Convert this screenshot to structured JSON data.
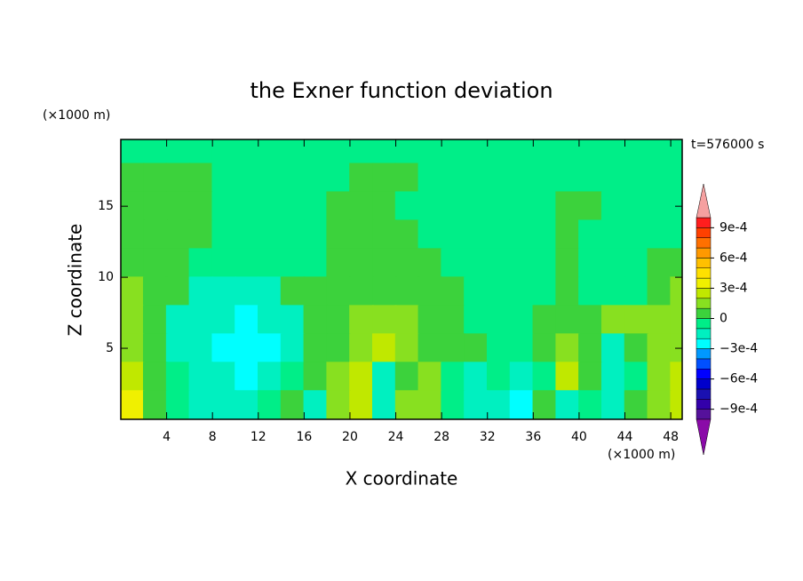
{
  "chart_data": {
    "type": "contour",
    "title": "the Exner function deviation",
    "x_label": "X coordinate",
    "y_label": "Z coordinate",
    "x_unit": "(×1000 m)",
    "y_unit": "(×1000 m)",
    "annotation": "t=576000 s",
    "xlim": [
      0,
      49
    ],
    "ylim": [
      0,
      19.7
    ],
    "xticks": [
      4,
      8,
      12,
      16,
      20,
      24,
      28,
      32,
      36,
      40,
      44,
      48
    ],
    "yticks": [
      5,
      10,
      15
    ],
    "x": [
      1,
      3,
      5,
      7,
      9,
      11,
      13,
      15,
      17,
      19,
      21,
      23,
      25,
      27,
      29,
      31,
      33,
      35,
      37,
      39,
      41,
      43,
      45,
      47,
      49
    ],
    "y": [
      19,
      17,
      15,
      13,
      11,
      9,
      7,
      5,
      3,
      1
    ],
    "z": [
      [
        -5e-05,
        -5e-05,
        -5e-05,
        -5e-05,
        -5e-05,
        -5e-05,
        -5e-05,
        -5e-05,
        -5e-05,
        -5e-05,
        -5e-05,
        -5e-05,
        -5e-05,
        -5e-05,
        -5e-05,
        -5e-05,
        -5e-05,
        -5e-05,
        -5e-05,
        -5e-05,
        -5e-05,
        -5e-05,
        -5e-05,
        -5e-05,
        -5e-05
      ],
      [
        5e-05,
        5e-05,
        5e-05,
        5e-05,
        -5e-05,
        -5e-05,
        -5e-05,
        -5e-05,
        -5e-05,
        -5e-05,
        5e-05,
        5e-05,
        5e-05,
        -5e-05,
        -5e-05,
        -5e-05,
        -5e-05,
        -5e-05,
        -5e-05,
        -5e-05,
        -5e-05,
        -5e-05,
        -5e-05,
        -5e-05,
        -5e-05
      ],
      [
        5e-05,
        5e-05,
        5e-05,
        5e-05,
        -5e-05,
        -5e-05,
        -5e-05,
        -5e-05,
        -5e-05,
        5e-05,
        5e-05,
        5e-05,
        -5e-05,
        -5e-05,
        -5e-05,
        -5e-05,
        -5e-05,
        -5e-05,
        -5e-05,
        5e-05,
        5e-05,
        -5e-05,
        -5e-05,
        -5e-05,
        -5e-05
      ],
      [
        5e-05,
        5e-05,
        5e-05,
        5e-05,
        -5e-05,
        -5e-05,
        -5e-05,
        -5e-05,
        -5e-05,
        5e-05,
        5e-05,
        5e-05,
        5e-05,
        -5e-05,
        -5e-05,
        -5e-05,
        -5e-05,
        -5e-05,
        -5e-05,
        5e-05,
        -5e-05,
        -5e-05,
        -5e-05,
        -5e-05,
        -5e-05
      ],
      [
        5e-05,
        5e-05,
        5e-05,
        -5e-05,
        -5e-05,
        -5e-05,
        -5e-05,
        -5e-05,
        -5e-05,
        5e-05,
        5e-05,
        5e-05,
        5e-05,
        5e-05,
        -5e-05,
        -5e-05,
        -5e-05,
        -5e-05,
        -5e-05,
        5e-05,
        -5e-05,
        -5e-05,
        -5e-05,
        5e-05,
        5e-05
      ],
      [
        0.00015,
        5e-05,
        5e-05,
        -0.00015,
        -0.00015,
        -0.00015,
        -0.00015,
        5e-05,
        5e-05,
        5e-05,
        5e-05,
        5e-05,
        5e-05,
        5e-05,
        5e-05,
        -5e-05,
        -5e-05,
        -5e-05,
        -5e-05,
        5e-05,
        -5e-05,
        -5e-05,
        -5e-05,
        5e-05,
        0.00015
      ],
      [
        0.00015,
        5e-05,
        -0.00015,
        -0.00015,
        -0.00015,
        -0.00025,
        -0.00015,
        -0.00015,
        5e-05,
        5e-05,
        0.00015,
        0.00015,
        0.00015,
        5e-05,
        5e-05,
        -5e-05,
        -5e-05,
        -5e-05,
        5e-05,
        5e-05,
        5e-05,
        0.00015,
        0.00015,
        0.00015,
        0.00015
      ],
      [
        0.00015,
        5e-05,
        -0.00015,
        -0.00015,
        -0.00025,
        -0.00025,
        -0.00025,
        -0.00015,
        5e-05,
        5e-05,
        0.00015,
        0.00025,
        0.00015,
        5e-05,
        5e-05,
        5e-05,
        -5e-05,
        -5e-05,
        5e-05,
        0.00015,
        5e-05,
        -0.00015,
        5e-05,
        0.00015,
        0.00015
      ],
      [
        0.00025,
        5e-05,
        -5e-05,
        -0.00015,
        -0.00015,
        -0.00025,
        -0.00015,
        -5e-05,
        5e-05,
        0.00015,
        0.00025,
        -0.00015,
        5e-05,
        0.00015,
        -5e-05,
        -0.00015,
        -5e-05,
        -0.00015,
        -5e-05,
        0.00025,
        5e-05,
        -0.00015,
        -5e-05,
        0.00015,
        0.00025
      ],
      [
        0.00035,
        5e-05,
        -5e-05,
        -0.00015,
        -0.00015,
        -0.00015,
        -5e-05,
        5e-05,
        -0.00015,
        0.00015,
        0.00025,
        -0.00015,
        0.00015,
        0.00015,
        -5e-05,
        -0.00015,
        -0.00015,
        -0.00025,
        5e-05,
        -0.00015,
        -5e-05,
        -0.00015,
        5e-05,
        0.00015,
        0.00025
      ]
    ],
    "colorbar": {
      "levels": [
        -0.001,
        -0.0009,
        -0.0008,
        -0.0007,
        -0.0006,
        -0.0005,
        -0.0004,
        -0.0003,
        -0.0002,
        -0.0001,
        0,
        0.0001,
        0.0002,
        0.0003,
        0.0004,
        0.0005,
        0.0006,
        0.0007,
        0.0008,
        0.0009,
        0.001
      ],
      "colors": [
        "#8a0aa8",
        "#55119b",
        "#3300aa",
        "#1a10b0",
        "#0000cc",
        "#0000ff",
        "#0050ff",
        "#0099ff",
        "#00ffff",
        "#00f0c0",
        "#00ee88",
        "#3cd23c",
        "#88e020",
        "#c0e800",
        "#f0f000",
        "#ffe000",
        "#ffc000",
        "#ff9900",
        "#ff7000",
        "#ff4000",
        "#ff1e1e",
        "#f5a0a0"
      ],
      "ticks": [
        {
          "value": 0.0009,
          "label": "9e-4"
        },
        {
          "value": 0.0006,
          "label": "6e-4"
        },
        {
          "value": 0.0003,
          "label": "3e-4"
        },
        0,
        {
          "value": -0.0003,
          "label": "−3e-4"
        },
        {
          "value": -0.0006,
          "label": "−6e-4"
        },
        {
          "value": -0.0009,
          "label": "−9e-4"
        }
      ]
    }
  }
}
